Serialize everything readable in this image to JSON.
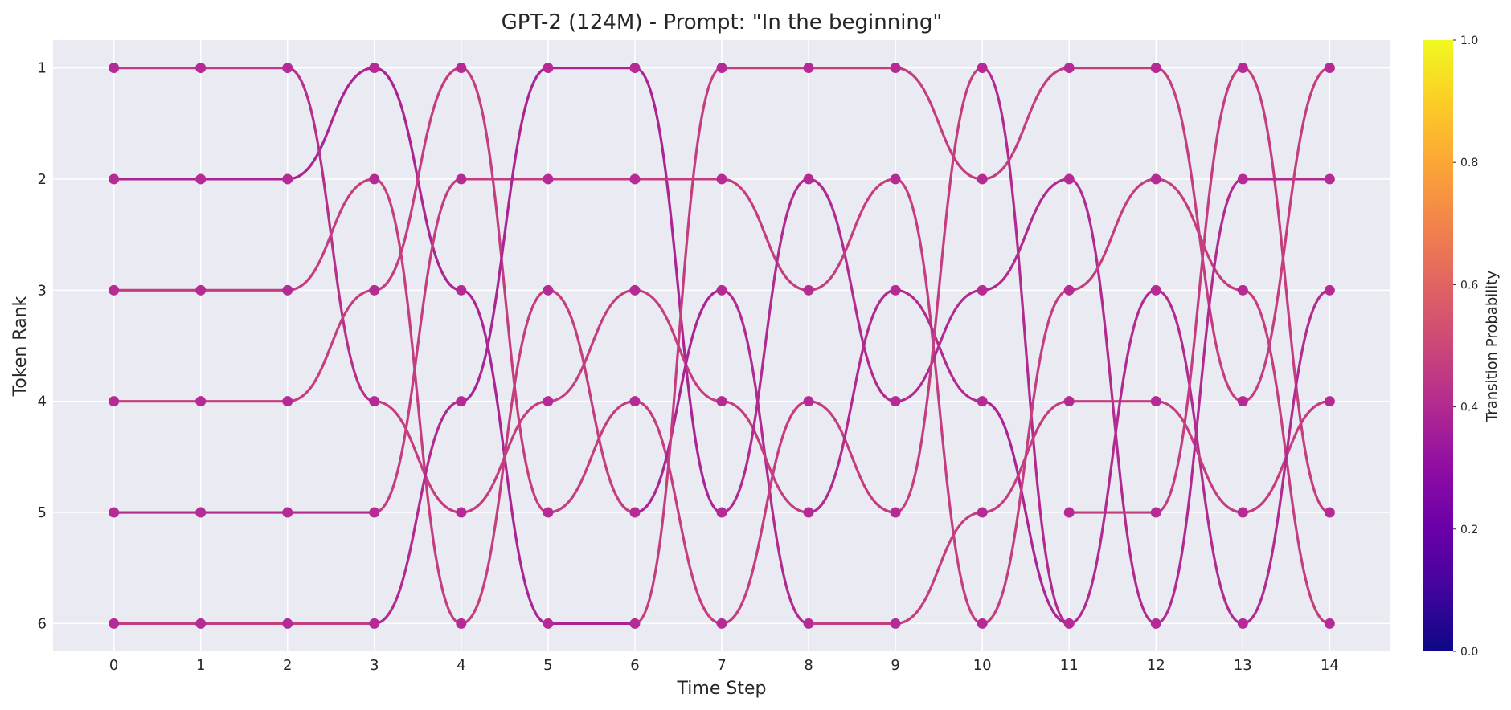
{
  "chart_data": {
    "type": "line",
    "title": "GPT-2 (124M) - Prompt: \"In the beginning\"",
    "xlabel": "Time Step",
    "ylabel": "Token Rank",
    "x_ticks": [
      "0",
      "1",
      "2",
      "3",
      "4",
      "5",
      "6",
      "7",
      "8",
      "9",
      "10",
      "11",
      "12",
      "13",
      "14"
    ],
    "y_ticks": [
      "1",
      "2",
      "3",
      "4",
      "5",
      "6"
    ],
    "xlim": [
      -0.7,
      14.7
    ],
    "ylim": [
      6.25,
      0.75
    ],
    "y_inverted": true,
    "grid": true,
    "colormap": "plasma",
    "colorbar": {
      "label": "Transition Probability",
      "range": [
        0.0,
        1.0
      ],
      "ticks": [
        "0.0",
        "0.2",
        "0.4",
        "0.6",
        "0.8",
        "1.0"
      ]
    },
    "node_color": "#b52a94",
    "transitions": [
      {
        "from_step": 0,
        "to_step": 1,
        "pairs": [
          [
            1,
            1,
            0.45
          ],
          [
            2,
            2,
            0.38
          ],
          [
            3,
            3,
            0.47
          ],
          [
            4,
            4,
            0.47
          ],
          [
            5,
            5,
            0.4
          ],
          [
            6,
            6,
            0.47
          ]
        ]
      },
      {
        "from_step": 1,
        "to_step": 2,
        "pairs": [
          [
            1,
            1,
            0.45
          ],
          [
            2,
            2,
            0.38
          ],
          [
            3,
            3,
            0.47
          ],
          [
            4,
            4,
            0.47
          ],
          [
            5,
            5,
            0.4
          ],
          [
            6,
            6,
            0.47
          ]
        ]
      },
      {
        "from_step": 2,
        "to_step": 3,
        "pairs": [
          [
            2,
            1,
            0.38
          ],
          [
            1,
            4,
            0.42
          ],
          [
            3,
            2,
            0.47
          ],
          [
            4,
            3,
            0.47
          ],
          [
            5,
            5,
            0.4
          ],
          [
            6,
            6,
            0.47
          ]
        ]
      },
      {
        "from_step": 3,
        "to_step": 4,
        "pairs": [
          [
            1,
            3,
            0.38
          ],
          [
            3,
            1,
            0.47
          ],
          [
            2,
            6,
            0.47
          ],
          [
            4,
            5,
            0.47
          ],
          [
            5,
            2,
            0.47
          ],
          [
            6,
            4,
            0.4
          ]
        ]
      },
      {
        "from_step": 4,
        "to_step": 5,
        "pairs": [
          [
            1,
            5,
            0.47
          ],
          [
            2,
            2,
            0.47
          ],
          [
            3,
            6,
            0.38
          ],
          [
            4,
            1,
            0.38
          ],
          [
            5,
            4,
            0.47
          ],
          [
            6,
            3,
            0.47
          ]
        ]
      },
      {
        "from_step": 5,
        "to_step": 6,
        "pairs": [
          [
            1,
            1,
            0.38
          ],
          [
            2,
            2,
            0.47
          ],
          [
            3,
            5,
            0.47
          ],
          [
            4,
            3,
            0.47
          ],
          [
            5,
            4,
            0.47
          ],
          [
            6,
            6,
            0.38
          ]
        ]
      },
      {
        "from_step": 6,
        "to_step": 7,
        "pairs": [
          [
            1,
            5,
            0.38
          ],
          [
            2,
            2,
            0.47
          ],
          [
            3,
            4,
            0.47
          ],
          [
            4,
            6,
            0.47
          ],
          [
            5,
            3,
            0.38
          ],
          [
            6,
            1,
            0.47
          ]
        ]
      },
      {
        "from_step": 7,
        "to_step": 8,
        "pairs": [
          [
            1,
            1,
            0.47
          ],
          [
            2,
            3,
            0.47
          ],
          [
            3,
            6,
            0.4
          ],
          [
            4,
            5,
            0.47
          ],
          [
            5,
            2,
            0.4
          ],
          [
            6,
            4,
            0.47
          ]
        ]
      },
      {
        "from_step": 8,
        "to_step": 9,
        "pairs": [
          [
            1,
            1,
            0.47
          ],
          [
            2,
            4,
            0.4
          ],
          [
            3,
            2,
            0.47
          ],
          [
            4,
            5,
            0.47
          ],
          [
            5,
            3,
            0.4
          ],
          [
            6,
            6,
            0.47
          ]
        ]
      },
      {
        "from_step": 9,
        "to_step": 10,
        "pairs": [
          [
            1,
            2,
            0.47
          ],
          [
            2,
            6,
            0.47
          ],
          [
            3,
            4,
            0.4
          ],
          [
            4,
            3,
            0.4
          ],
          [
            5,
            1,
            0.47
          ],
          [
            6,
            5,
            0.47
          ]
        ]
      },
      {
        "from_step": 10,
        "to_step": 11,
        "pairs": [
          [
            1,
            6,
            0.4
          ],
          [
            2,
            1,
            0.47
          ],
          [
            3,
            2,
            0.4
          ],
          [
            4,
            6,
            0.38
          ],
          [
            5,
            4,
            0.47
          ],
          [
            6,
            3,
            0.47
          ]
        ]
      },
      {
        "from_step": 11,
        "to_step": 12,
        "pairs": [
          [
            1,
            1,
            0.47
          ],
          [
            2,
            6,
            0.4
          ],
          [
            3,
            2,
            0.47
          ],
          [
            4,
            4,
            0.47
          ],
          [
            5,
            5,
            0.47
          ],
          [
            6,
            3,
            0.4
          ]
        ]
      },
      {
        "from_step": 12,
        "to_step": 13,
        "pairs": [
          [
            1,
            4,
            0.47
          ],
          [
            2,
            3,
            0.47
          ],
          [
            3,
            6,
            0.4
          ],
          [
            4,
            5,
            0.47
          ],
          [
            5,
            1,
            0.47
          ],
          [
            6,
            2,
            0.4
          ]
        ]
      },
      {
        "from_step": 13,
        "to_step": 14,
        "pairs": [
          [
            1,
            5,
            0.47
          ],
          [
            2,
            2,
            0.4
          ],
          [
            3,
            6,
            0.47
          ],
          [
            4,
            1,
            0.47
          ],
          [
            5,
            4,
            0.47
          ],
          [
            6,
            3,
            0.4
          ]
        ]
      }
    ]
  }
}
